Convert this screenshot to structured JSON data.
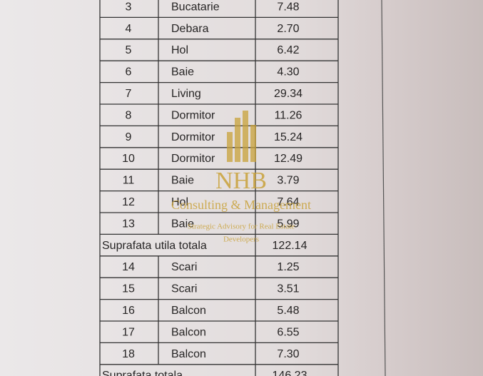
{
  "table": {
    "rows": [
      [
        "3",
        "Bucatarie",
        "7.48"
      ],
      [
        "4",
        "Debara",
        "2.70"
      ],
      [
        "5",
        "Hol",
        "6.42"
      ],
      [
        "6",
        "Baie",
        "4.30"
      ],
      [
        "7",
        "Living",
        "29.34"
      ],
      [
        "8",
        "Dormitor",
        "11.26"
      ],
      [
        "9",
        "Dormitor",
        "15.24"
      ],
      [
        "10",
        "Dormitor",
        "12.49"
      ],
      [
        "11",
        "Baie",
        "3.79"
      ],
      [
        "12",
        "Hol",
        "7.64"
      ],
      [
        "13",
        "Baie",
        "5.99"
      ],
      [
        "Suprafata utila totala",
        "122.14"
      ],
      [
        "14",
        "Scari",
        "1.25"
      ],
      [
        "15",
        "Scari",
        "3.51"
      ],
      [
        "16",
        "Balcon",
        "5.48"
      ],
      [
        "17",
        "Balcon",
        "6.55"
      ],
      [
        "18",
        "Balcon",
        "7.30"
      ],
      [
        "Suprafata totala",
        "146.23"
      ]
    ]
  },
  "watermark": {
    "brand": "NHB",
    "tagline": "Consulting & Management",
    "subtitle": [
      "Strategic Advisory for Real Estate",
      "Developers"
    ]
  }
}
